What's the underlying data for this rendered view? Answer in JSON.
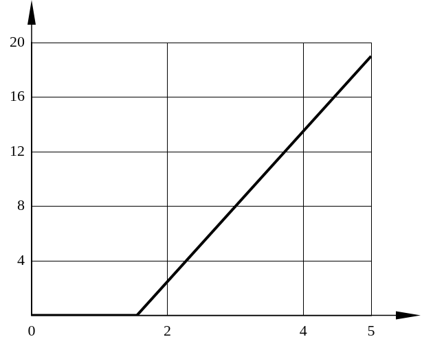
{
  "chart_data": {
    "type": "line",
    "x": [
      0,
      1.55,
      5
    ],
    "values": [
      0,
      0,
      19
    ],
    "color": "#000000",
    "xlim": [
      0,
      5
    ],
    "xticks": [
      0,
      2,
      4,
      5
    ],
    "ylim": [
      0,
      20
    ],
    "yticks": [
      4,
      8,
      12,
      16,
      20
    ],
    "grid": true
  }
}
